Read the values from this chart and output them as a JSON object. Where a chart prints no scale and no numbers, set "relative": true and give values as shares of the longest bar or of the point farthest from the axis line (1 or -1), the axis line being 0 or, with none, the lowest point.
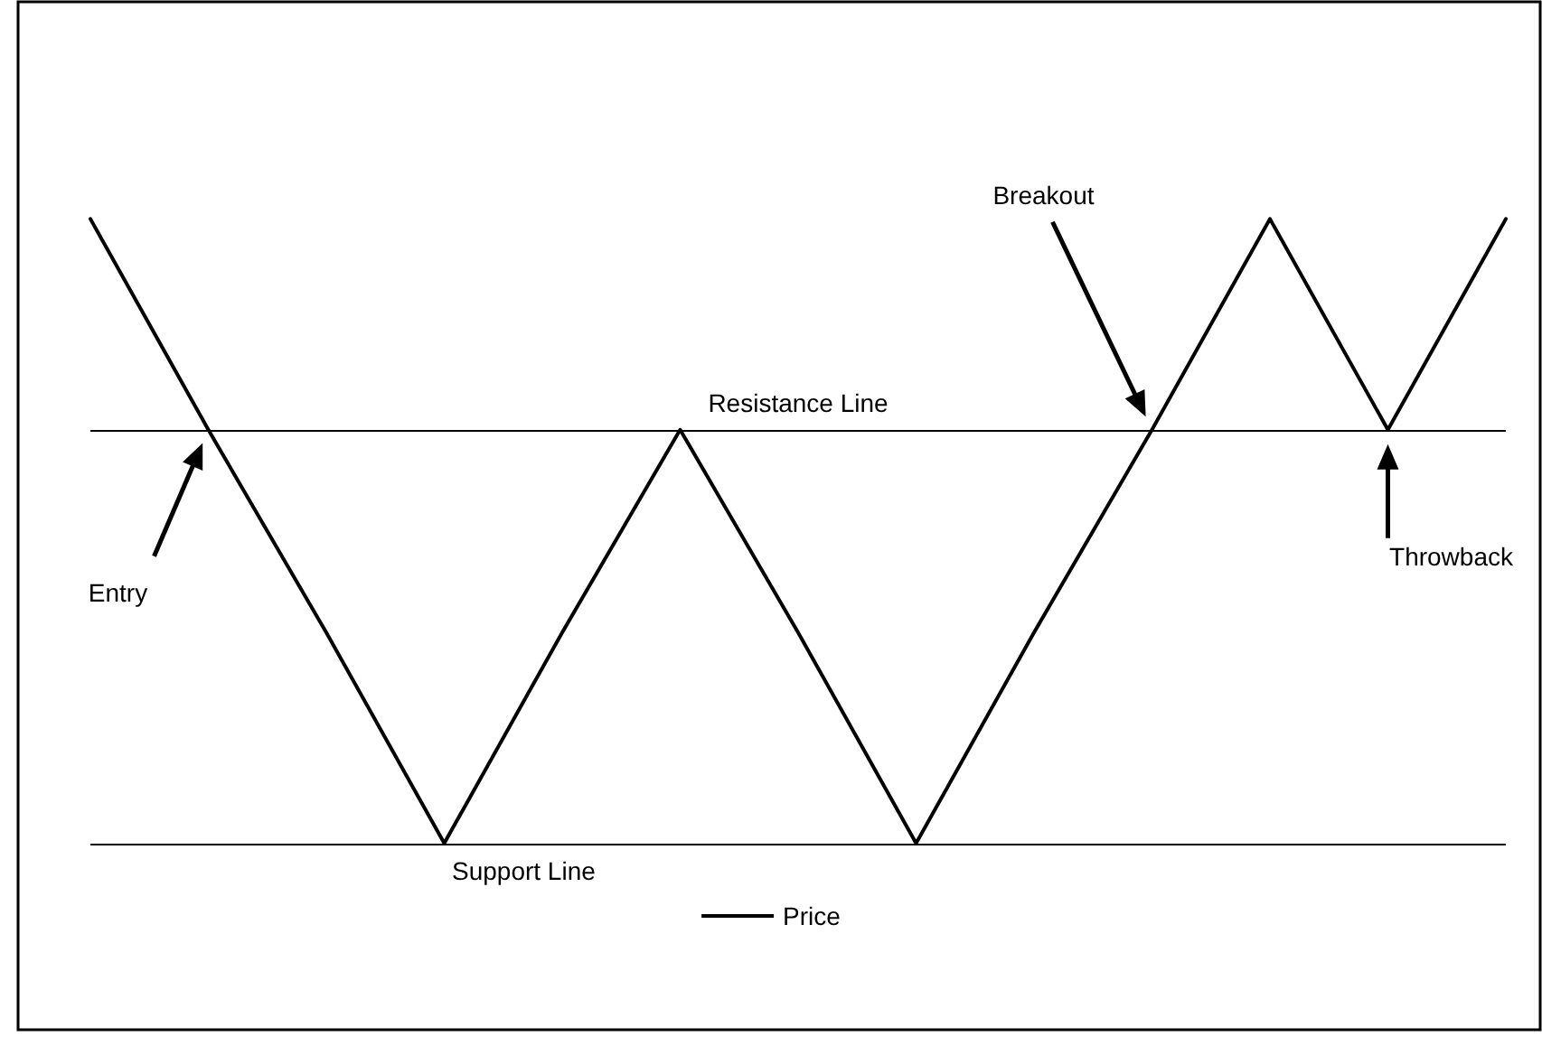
{
  "chart_data": {
    "type": "line",
    "relative": true,
    "categories": [
      null,
      null,
      null,
      null,
      null,
      null,
      null,
      null,
      null,
      null,
      null,
      null,
      null
    ],
    "series": [
      {
        "name": "Price",
        "color": "#000000",
        "values": [
          1,
          0.74,
          0.49,
          0.23,
          0.49,
          0.74,
          0.49,
          0.23,
          0.49,
          0.74,
          1,
          0.74,
          1
        ]
      }
    ],
    "ref_lines": [
      {
        "axis": "y",
        "value": 0.74,
        "label": "Resistance Line",
        "color": "#000000"
      },
      {
        "axis": "y",
        "value": 0.23,
        "label": "Support Line",
        "color": "#000000"
      }
    ],
    "annotations": [
      "Entry",
      "Breakout",
      "Throwback"
    ],
    "legend": "bottom",
    "marker": "none",
    "line_style": "solid",
    "grid": false
  }
}
